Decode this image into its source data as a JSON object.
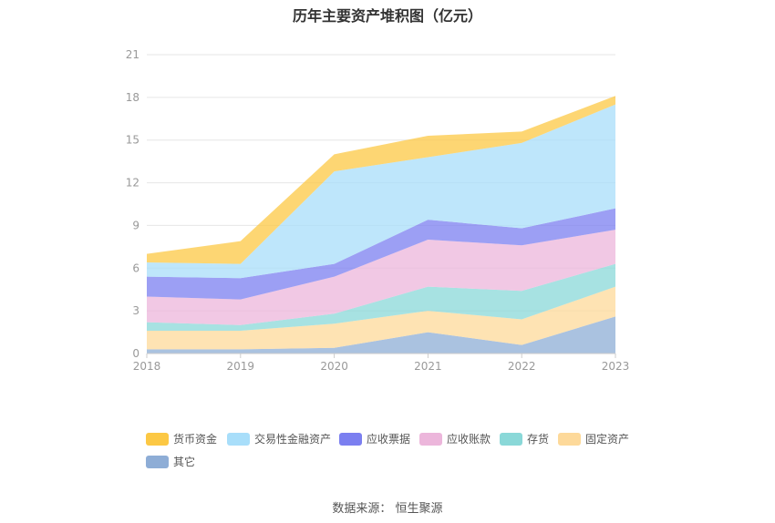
{
  "title": "历年主要资产堆积图（亿元）",
  "source": "数据来源：  恒生聚源",
  "chart_data": {
    "type": "area",
    "stacked": true,
    "title": "历年主要资产堆积图（亿元）",
    "x": [
      "2018",
      "2019",
      "2020",
      "2021",
      "2022",
      "2023"
    ],
    "ylim": [
      0,
      21
    ],
    "yticks": [
      0,
      3,
      6,
      9,
      12,
      15,
      18,
      21
    ],
    "grid": true,
    "legend_position": "bottom-left",
    "series": [
      {
        "name": "其它",
        "color": "#8eadd6",
        "values": [
          0.3,
          0.3,
          0.4,
          1.5,
          0.6,
          2.6
        ]
      },
      {
        "name": "固定资产",
        "color": "#fdd99a",
        "values": [
          1.3,
          1.3,
          1.7,
          1.5,
          1.8,
          2.1
        ]
      },
      {
        "name": "存货",
        "color": "#8ad8d8",
        "values": [
          0.6,
          0.4,
          0.7,
          1.7,
          2.0,
          1.6
        ]
      },
      {
        "name": "应收账款",
        "color": "#ecb6db",
        "values": [
          1.8,
          1.8,
          2.6,
          3.3,
          3.2,
          2.4
        ]
      },
      {
        "name": "应收票据",
        "color": "#7b7ff0",
        "values": [
          1.4,
          1.5,
          0.9,
          1.4,
          1.2,
          1.5
        ]
      },
      {
        "name": "交易性金融资产",
        "color": "#a8defa",
        "values": [
          1.0,
          1.0,
          6.5,
          4.4,
          6.0,
          7.3
        ]
      },
      {
        "name": "货币资金",
        "color": "#fcc844",
        "values": [
          0.6,
          1.6,
          1.2,
          1.5,
          0.8,
          0.6
        ]
      }
    ],
    "legend_order": [
      "货币资金",
      "交易性金融资产",
      "应收票据",
      "应收账款",
      "存货",
      "固定资产",
      "其它"
    ]
  }
}
